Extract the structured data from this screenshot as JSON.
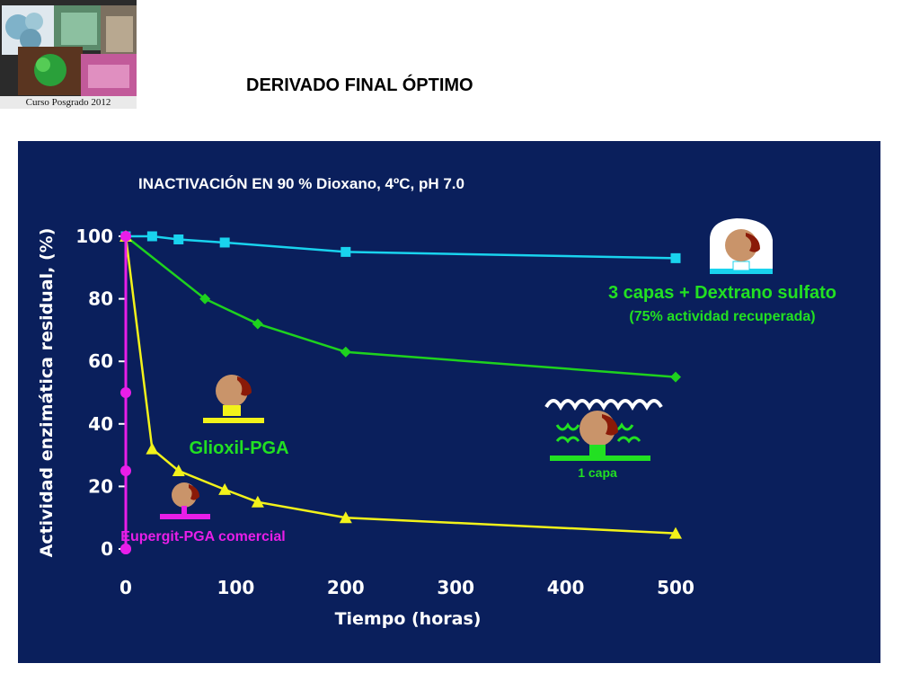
{
  "slide": {
    "title": "DERIVADO FINAL ÓPTIMO",
    "thumbnail_caption": "Curso Posgrado 2012"
  },
  "colors": {
    "panel_bg": "#0a1f5c",
    "cyan_series": "#19d3ee",
    "green_series": "#1ed21e",
    "yellow_series": "#f2f21a",
    "magenta_series": "#e81ee8",
    "protein_tan": "#c9946a",
    "protein_red": "#8a1a08",
    "label_green": "#22e022",
    "label_magenta": "#e81ee8"
  },
  "annotations": {
    "dextran_label": "3 capas + Dextrano sulfato",
    "dextran_sublabel": "(75% actividad recuperada)",
    "glioxil_label": "Glioxil-PGA",
    "eupergit_label": "Eupergit-PGA comercial",
    "one_layer_label": "1 capa"
  },
  "chart_data": {
    "type": "line",
    "title": "INACTIVACIÓN  EN 90 % Dioxano, 4ºC, pH 7.0",
    "xlabel": "Tiempo (horas)",
    "ylabel": "Actividad enzimática residual, (%)",
    "xlim": [
      0,
      500
    ],
    "ylim": [
      0,
      100
    ],
    "xticks": [
      0,
      100,
      200,
      300,
      400,
      500
    ],
    "yticks": [
      0,
      20,
      40,
      60,
      80,
      100
    ],
    "grid": false,
    "series": [
      {
        "name": "3 capas + Dextrano sulfato",
        "color": "#19d3ee",
        "marker": "square",
        "x": [
          0,
          24,
          48,
          90,
          200,
          500
        ],
        "y": [
          100,
          100,
          99,
          98,
          95,
          93
        ]
      },
      {
        "name": "1 capa",
        "color": "#1ed21e",
        "marker": "diamond",
        "x": [
          0,
          72,
          120,
          200,
          500
        ],
        "y": [
          100,
          80,
          72,
          63,
          55
        ]
      },
      {
        "name": "Glioxil-PGA",
        "color": "#f2f21a",
        "marker": "triangle",
        "x": [
          0,
          24,
          48,
          90,
          120,
          200,
          500
        ],
        "y": [
          100,
          32,
          25,
          19,
          15,
          10,
          5
        ]
      },
      {
        "name": "Eupergit-PGA comercial",
        "color": "#e81ee8",
        "marker": "circle",
        "x": [
          0,
          0,
          0,
          0,
          0
        ],
        "y": [
          100,
          50,
          25,
          0,
          0
        ]
      }
    ]
  }
}
